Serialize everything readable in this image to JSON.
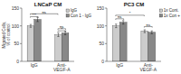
{
  "chart_data": [
    {
      "type": "bar",
      "title": "LNCaP CM",
      "y_label": "Migrated Cells, % of control",
      "categories": [
        "IgG",
        "Anti-\nVEGF-A"
      ],
      "series": [
        {
          "name": "IgG",
          "color": "#cccccc",
          "values": [
            100,
            75
          ],
          "errors": [
            4,
            5
          ]
        },
        {
          "name": "Con 1 - IgG",
          "color": "#888888",
          "values": [
            118,
            80
          ],
          "errors": [
            6,
            5
          ]
        }
      ],
      "ylim": [
        0,
        150
      ],
      "yticks": [
        0,
        50,
        100,
        150
      ],
      "grid": false,
      "legend": "upper right",
      "annotations": [
        {
          "text": "ns",
          "x1": -0.14,
          "x2": 0.86,
          "y": 134
        },
        {
          "text": "***",
          "x1": -0.14,
          "x2": 0.14,
          "y": 126
        },
        {
          "text": "ns",
          "x1": 0.86,
          "x2": 1.14,
          "y": 92
        },
        {
          "text": "*",
          "x1": 0.86,
          "x2": 1.14,
          "y": 86
        }
      ]
    },
    {
      "type": "bar",
      "title": "PC3 CM",
      "categories": [
        "IgG",
        "Anti-\nVEGF-A"
      ],
      "series": [
        {
          "name": "1x Cont.",
          "color": "#cccccc",
          "values": [
            100,
            85
          ],
          "errors": [
            5,
            4
          ]
        },
        {
          "name": "1x Con +",
          "color": "#888888",
          "values": [
            110,
            82
          ],
          "errors": [
            5,
            4
          ]
        }
      ],
      "ylim": [
        0,
        150
      ],
      "yticks": [
        0,
        50,
        100,
        150
      ],
      "grid": false,
      "legend": "upper right",
      "annotations": [
        {
          "text": "*",
          "x1": -0.14,
          "x2": 0.86,
          "y": 130
        },
        {
          "text": "ns",
          "x1": -0.14,
          "x2": 0.14,
          "y": 120
        },
        {
          "text": "ns",
          "x1": 0.86,
          "x2": 1.14,
          "y": 98
        }
      ]
    }
  ]
}
